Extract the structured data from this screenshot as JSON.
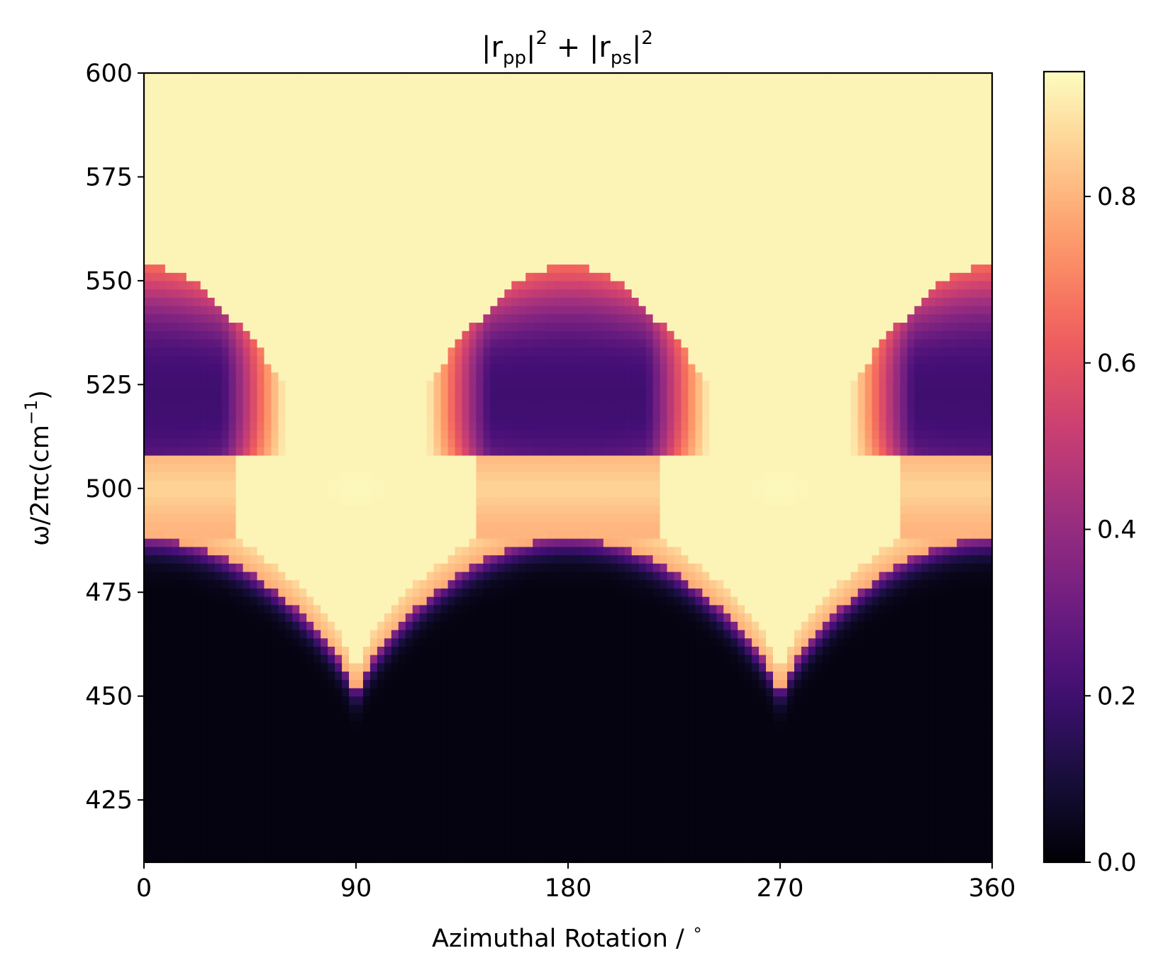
{
  "chart_data": {
    "type": "heatmap",
    "title": {
      "base": "|r",
      "sub1": "pp",
      "mid": "|",
      "sup1": "2",
      "plus": " + |r",
      "sub2": "ps",
      "end": "|",
      "sup2": "2"
    },
    "xlabel": "Azimuthal Rotation / ",
    "xlabel_degree": "∘",
    "ylabel": {
      "main": "ω/2πc(cm",
      "sup": "−1",
      "close": ")"
    },
    "xlim": [
      0,
      360
    ],
    "ylim": [
      410,
      600
    ],
    "xticks": [
      0,
      90,
      180,
      270,
      360
    ],
    "xtick_labels": [
      "0",
      "90",
      "180",
      "270",
      "360"
    ],
    "yticks": [
      425,
      450,
      475,
      500,
      525,
      550,
      575,
      600
    ],
    "ytick_labels": [
      "425",
      "450",
      "475",
      "500",
      "525",
      "550",
      "575",
      "600"
    ],
    "colorbar": {
      "ticks": [
        0.0,
        0.2,
        0.4,
        0.6,
        0.8
      ],
      "tick_labels": [
        "0.0",
        "0.2",
        "0.4",
        "0.6",
        "0.8"
      ],
      "range": [
        0,
        0.95
      ],
      "colormap": "magma"
    },
    "features": {
      "low_reflectivity_band_upper_edge_at_0_180_360": 488,
      "low_reflectivity_band_upper_edge_at_90_270": 450,
      "bright_band_center": 500,
      "lobe_range_at_0_180_360": [
        508,
        550
      ],
      "lobe_center": 522,
      "high_reflectivity_above": 550
    },
    "colors": {
      "magma": [
        "#000004",
        "#180f3d",
        "#440f76",
        "#721f81",
        "#9e2f7f",
        "#cd4071",
        "#f1605d",
        "#fd9668",
        "#feca8d",
        "#fcfdbf"
      ]
    }
  }
}
